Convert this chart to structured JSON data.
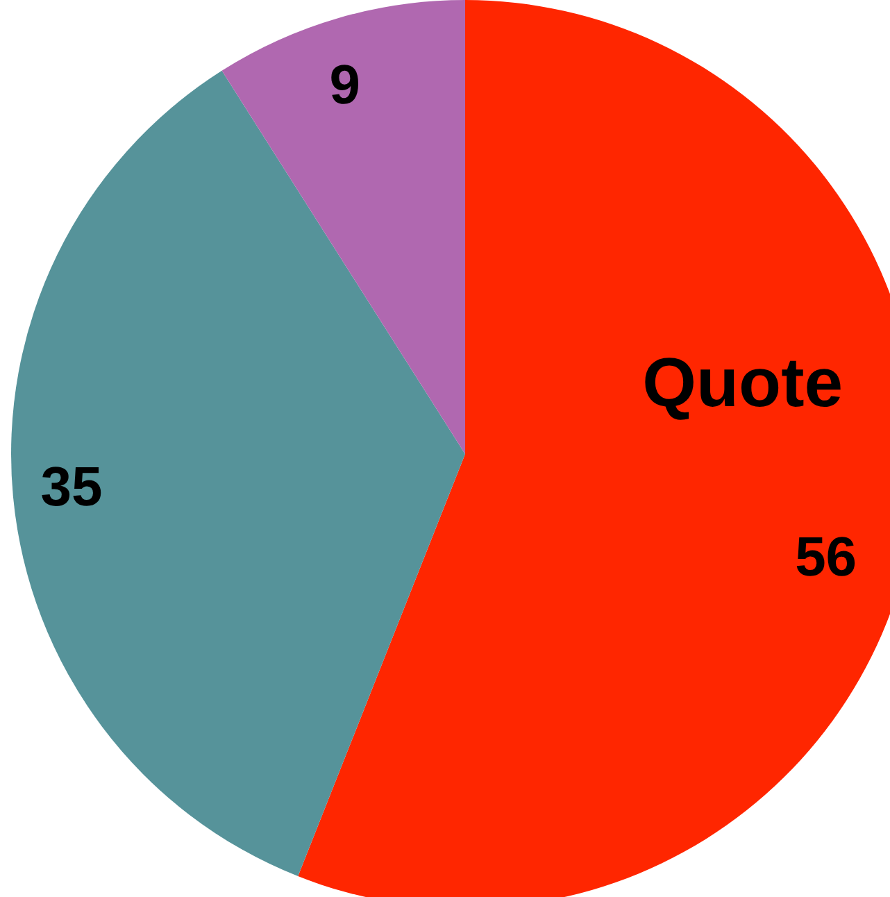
{
  "chart_data": {
    "type": "pie",
    "categories": [
      "Quote",
      null,
      null
    ],
    "values": [
      56,
      35,
      9
    ],
    "colors": [
      "#ff2600",
      "#56939a",
      "#b068b0"
    ],
    "data_labels": true,
    "legend": false
  }
}
